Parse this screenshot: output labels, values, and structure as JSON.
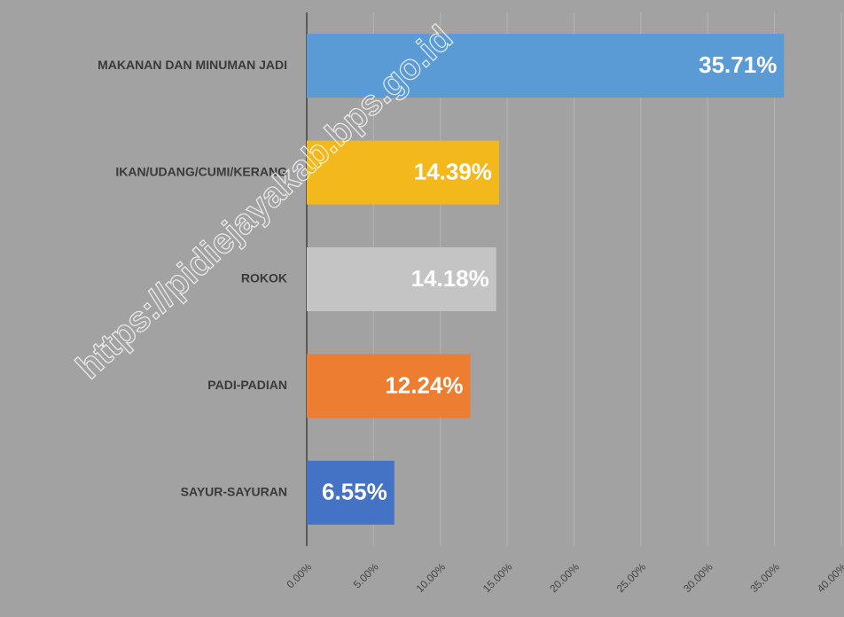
{
  "chart_data": {
    "type": "bar",
    "orientation": "horizontal",
    "categories": [
      "MAKANAN DAN MINUMAN JADI",
      "IKAN/UDANG/CUMI/KERANG",
      "ROKOK",
      "PADI-PADIAN",
      "SAYUR-SAYURAN"
    ],
    "values": [
      35.71,
      14.39,
      14.18,
      12.24,
      6.55
    ],
    "value_labels": [
      "35.71%",
      "14.39%",
      "14.18%",
      "12.24%",
      "6.55%"
    ],
    "colors": [
      "#5b9bd5",
      "#f2b81c",
      "#c4c4c4",
      "#ed7d31",
      "#4472c4"
    ],
    "xlim": [
      0,
      40
    ],
    "xticks": [
      {
        "value": 0,
        "label": "0.00%"
      },
      {
        "value": 5,
        "label": "5.00%"
      },
      {
        "value": 10,
        "label": "10.00%"
      },
      {
        "value": 15,
        "label": "15.00%"
      },
      {
        "value": 20,
        "label": "20.00%"
      },
      {
        "value": 25,
        "label": "25.00%"
      },
      {
        "value": 30,
        "label": "30.00%"
      },
      {
        "value": 35,
        "label": "35.00%"
      },
      {
        "value": 40,
        "label": "40.00%"
      }
    ],
    "grid": true,
    "watermark": "https://pidiejayakab.bps.go.id"
  }
}
